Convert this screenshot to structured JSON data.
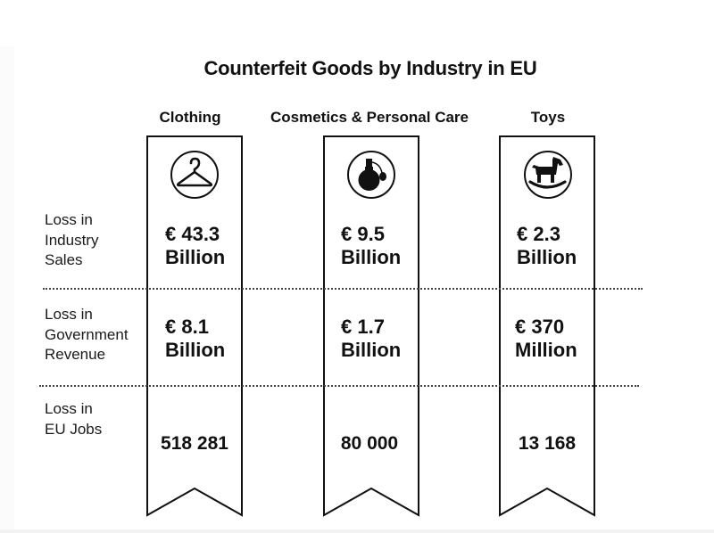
{
  "title": "Counterfeit Goods by Industry in EU",
  "rows": {
    "sales": "Loss in\nIndustry\nSales",
    "revenue": "Loss in\nGovernment\nRevenue",
    "jobs": "Loss in\nEU Jobs"
  },
  "industries": [
    {
      "name": "Clothing",
      "icon": "hanger-icon",
      "sales": "€ 43.3\nBillion",
      "revenue": "€ 8.1\nBillion",
      "jobs": "518 281"
    },
    {
      "name": "Cosmetics & Personal Care",
      "icon": "perfume-bottle-icon",
      "sales": "€ 9.5\nBillion",
      "revenue": "€ 1.7\nBillion",
      "jobs": "80 000"
    },
    {
      "name": "Toys",
      "icon": "rocking-horse-icon",
      "sales": "€ 2.3\nBillion",
      "revenue": "€ 370\nMillion",
      "jobs": "13 168"
    }
  ]
}
